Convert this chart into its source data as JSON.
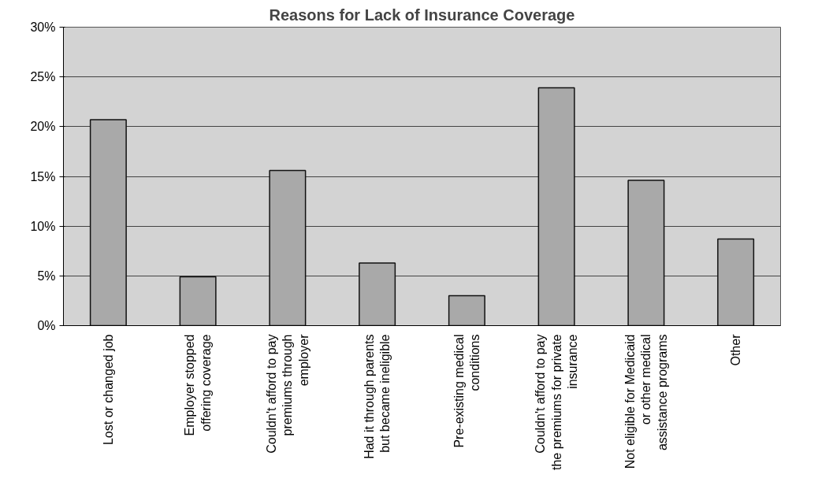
{
  "chart_data": {
    "type": "bar",
    "title": "Reasons for Lack of Insurance Coverage",
    "categories": [
      "Lost or changed job",
      "Employer stopped\noffering coverage",
      "Couldn't afford to pay\npremiums through\nemployer",
      "Had it through parents\nbut became ineligible",
      "Pre-existing medical\nconditions",
      "Couldn't afford to pay\nthe premiums for private\ninsurance",
      "Not eligible for Medicaid\nor other medical\nassistance programs",
      "Other"
    ],
    "values": [
      20.7,
      4.9,
      15.6,
      6.3,
      3.0,
      23.9,
      14.6,
      8.7
    ],
    "color": "#a9a9a9",
    "ylim": [
      0,
      30
    ],
    "yticks": [
      {
        "value": 0,
        "label": "0%"
      },
      {
        "value": 5,
        "label": "5%"
      },
      {
        "value": 10,
        "label": "10%"
      },
      {
        "value": 15,
        "label": "15%"
      },
      {
        "value": 20,
        "label": "20%"
      },
      {
        "value": 25,
        "label": "25%"
      },
      {
        "value": 30,
        "label": "30%"
      }
    ],
    "grid": "y"
  }
}
